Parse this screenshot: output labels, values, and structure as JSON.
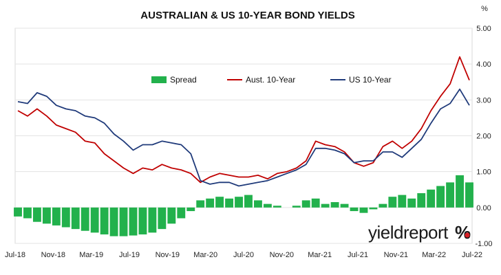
{
  "chart_data": {
    "type": "line",
    "title": "AUSTRALIAN & US 10-YEAR BOND YIELDS",
    "unit_label": "%",
    "ylim": [
      -1.0,
      5.0
    ],
    "y_ticks": [
      "5.00",
      "4.00",
      "3.00",
      "2.00",
      "1.00",
      "0.00",
      "-1.00"
    ],
    "x_ticks": [
      "Jul-18",
      "Nov-18",
      "Mar-19",
      "Jul-19",
      "Nov-19",
      "Mar-20",
      "Jul-20",
      "Nov-20",
      "Mar-21",
      "Jul-21",
      "Nov-21",
      "Mar-22",
      "Jul-22"
    ],
    "grid": true,
    "legend_position": "top-center",
    "x": [
      "Jul-18",
      "Sep-18",
      "Oct-18",
      "Nov-18",
      "Dec-18",
      "Jan-19",
      "Feb-19",
      "Mar-19",
      "Apr-19",
      "May-19",
      "Jun-19",
      "Jul-19",
      "Aug-19",
      "Sep-19",
      "Oct-19",
      "Nov-19",
      "Dec-19",
      "Jan-20",
      "Feb-20",
      "Mar-20",
      "Apr-20",
      "May-20",
      "Jun-20",
      "Jul-20",
      "Aug-20",
      "Sep-20",
      "Oct-20",
      "Nov-20",
      "Dec-20",
      "Jan-21",
      "Feb-21",
      "Mar-21",
      "Apr-21",
      "May-21",
      "Jun-21",
      "Jul-21",
      "Aug-21",
      "Sep-21",
      "Oct-21",
      "Nov-21",
      "Dec-21",
      "Jan-22",
      "Feb-22",
      "Mar-22",
      "Apr-22",
      "May-22",
      "Jun-22",
      "Jul-22"
    ],
    "series": [
      {
        "name": "Spread",
        "type": "bar",
        "color": "#22b14c",
        "values": [
          -0.25,
          -0.3,
          -0.4,
          -0.45,
          -0.5,
          -0.55,
          -0.6,
          -0.65,
          -0.7,
          -0.75,
          -0.8,
          -0.8,
          -0.78,
          -0.75,
          -0.7,
          -0.6,
          -0.45,
          -0.3,
          -0.1,
          0.2,
          0.25,
          0.3,
          0.25,
          0.3,
          0.35,
          0.2,
          0.1,
          0.05,
          0.0,
          0.05,
          0.2,
          0.25,
          0.1,
          0.15,
          0.1,
          -0.1,
          -0.15,
          -0.05,
          0.1,
          0.3,
          0.35,
          0.25,
          0.4,
          0.5,
          0.6,
          0.7,
          0.9,
          0.7
        ]
      },
      {
        "name": "Aust. 10-Year",
        "type": "line",
        "color": "#c00000",
        "values": [
          2.7,
          2.55,
          2.75,
          2.55,
          2.3,
          2.2,
          2.1,
          1.85,
          1.8,
          1.5,
          1.3,
          1.1,
          0.95,
          1.1,
          1.05,
          1.2,
          1.1,
          1.05,
          0.95,
          0.7,
          0.85,
          0.95,
          0.9,
          0.85,
          0.85,
          0.9,
          0.8,
          0.95,
          1.0,
          1.1,
          1.3,
          1.85,
          1.75,
          1.7,
          1.55,
          1.25,
          1.15,
          1.25,
          1.7,
          1.85,
          1.65,
          1.85,
          2.2,
          2.7,
          3.1,
          3.45,
          4.2,
          3.55
        ]
      },
      {
        "name": "US 10-Year",
        "type": "line",
        "color": "#1f3a7a",
        "values": [
          2.95,
          2.9,
          3.2,
          3.1,
          2.85,
          2.75,
          2.7,
          2.55,
          2.5,
          2.35,
          2.05,
          1.85,
          1.6,
          1.75,
          1.75,
          1.85,
          1.8,
          1.75,
          1.5,
          0.75,
          0.65,
          0.7,
          0.7,
          0.6,
          0.65,
          0.7,
          0.75,
          0.85,
          0.95,
          1.05,
          1.2,
          1.65,
          1.65,
          1.6,
          1.5,
          1.25,
          1.3,
          1.3,
          1.55,
          1.55,
          1.4,
          1.65,
          1.9,
          2.35,
          2.75,
          2.9,
          3.3,
          2.85
        ]
      }
    ]
  },
  "logo": {
    "text": "yieldreport",
    "mark": "%"
  }
}
